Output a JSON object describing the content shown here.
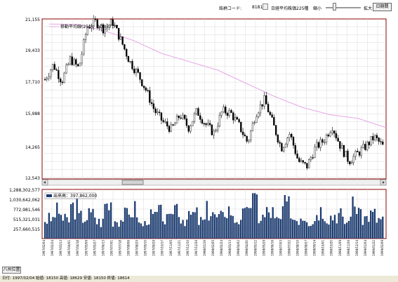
{
  "toolbar": {
    "code_label": "銘柄コード:",
    "code_value": "8181",
    "name": "日経平均株価225種",
    "shrink_label": "縮小",
    "expand_label": "拡大",
    "zoom_level": 0.2,
    "period_button": "日期間"
  },
  "price_chart": {
    "ma_legend": "移動平均線(250)：20,877.72",
    "y_ticks": [
      "21,155",
      "19,433",
      "17,710",
      "15,988",
      "14,265",
      "12,543"
    ],
    "colors": {
      "candle": "#000000",
      "ma": "#e6a8e6",
      "grid": "#cccccc",
      "frame": "#8b0000"
    }
  },
  "volume_chart": {
    "legend": "出来高：397,862,000",
    "y_ticks": [
      "1,288,302,577",
      "1,030,642,062",
      "772,981,546",
      "515,321,031",
      "257,660,515"
    ],
    "bar_color": "#1a3a6e"
  },
  "chart_data": {
    "type": "candlestick",
    "series": [
      {
        "name": "移動平均線(250)",
        "values": [
          20877.72,
          20860,
          20500,
          20000,
          19300,
          18850,
          18400,
          17700,
          17000,
          16400,
          16000,
          15800,
          15300
        ]
      }
    ],
    "price_path": [
      17900,
      18700,
      17800,
      19000,
      18500,
      20700,
      21000,
      20600,
      21000,
      20000,
      18900,
      18200,
      17300,
      16200,
      15600,
      15200,
      16000,
      15300,
      16200,
      15500,
      15000,
      16200,
      16100,
      15400,
      14500,
      16100,
      16800,
      15500,
      14200,
      15000,
      13500,
      13200,
      14200,
      14600,
      15400,
      14300,
      13500,
      13900,
      14300,
      14800,
      14300
    ],
    "volume_levels": [
      0.4,
      0.55,
      0.38,
      0.65,
      0.45,
      0.5,
      0.35,
      0.72,
      0.4,
      0.48,
      0.6,
      0.3,
      0.45,
      0.52,
      0.38,
      0.7,
      0.42,
      0.5,
      0.36,
      0.58,
      0.44,
      0.62,
      0.4,
      0.49,
      0.8,
      0.45,
      0.55,
      0.37,
      0.66,
      0.43,
      0.5,
      0.39,
      0.6,
      0.47,
      0.52,
      0.35,
      0.69,
      0.44,
      0.5,
      0.4
    ],
    "x_labels": [
      "1997/02/04",
      "1997/02/24",
      "1997/03/13",
      "1997/04/01",
      "1997/04/18",
      "1997/05/09",
      "1997/05/27",
      "1997/06/13",
      "1997/07/01",
      "1997/07/18",
      "1997/08/06",
      "1997/08/25",
      "1997/09/10",
      "1997/09/29",
      "1997/10/17",
      "1997/11/05",
      "1997/11/21",
      "1997/12/10",
      "1997/12/26",
      "1998/01/19",
      "1998/02/05",
      "1998/02/24",
      "1998/03/13",
      "1998/04/02",
      "1998/04/20",
      "1998/05/12",
      "1998/05/29",
      "1998/06/16",
      "1998/07/03",
      "1998/07/22",
      "1998/08/10",
      "1998/08/27",
      "1998/09/14",
      "1998/10/01",
      "1998/10/20",
      "1998/11/09",
      "1998/11/26",
      "1998/12/14",
      "1999/01/04",
      "1999/01/22",
      "1999/02/09"
    ]
  },
  "bottom_button": "八州位置",
  "status_bar": "日付: 1997/02/04 始値: 18150 高値: 18629 安値: 18150 終値: 18614"
}
